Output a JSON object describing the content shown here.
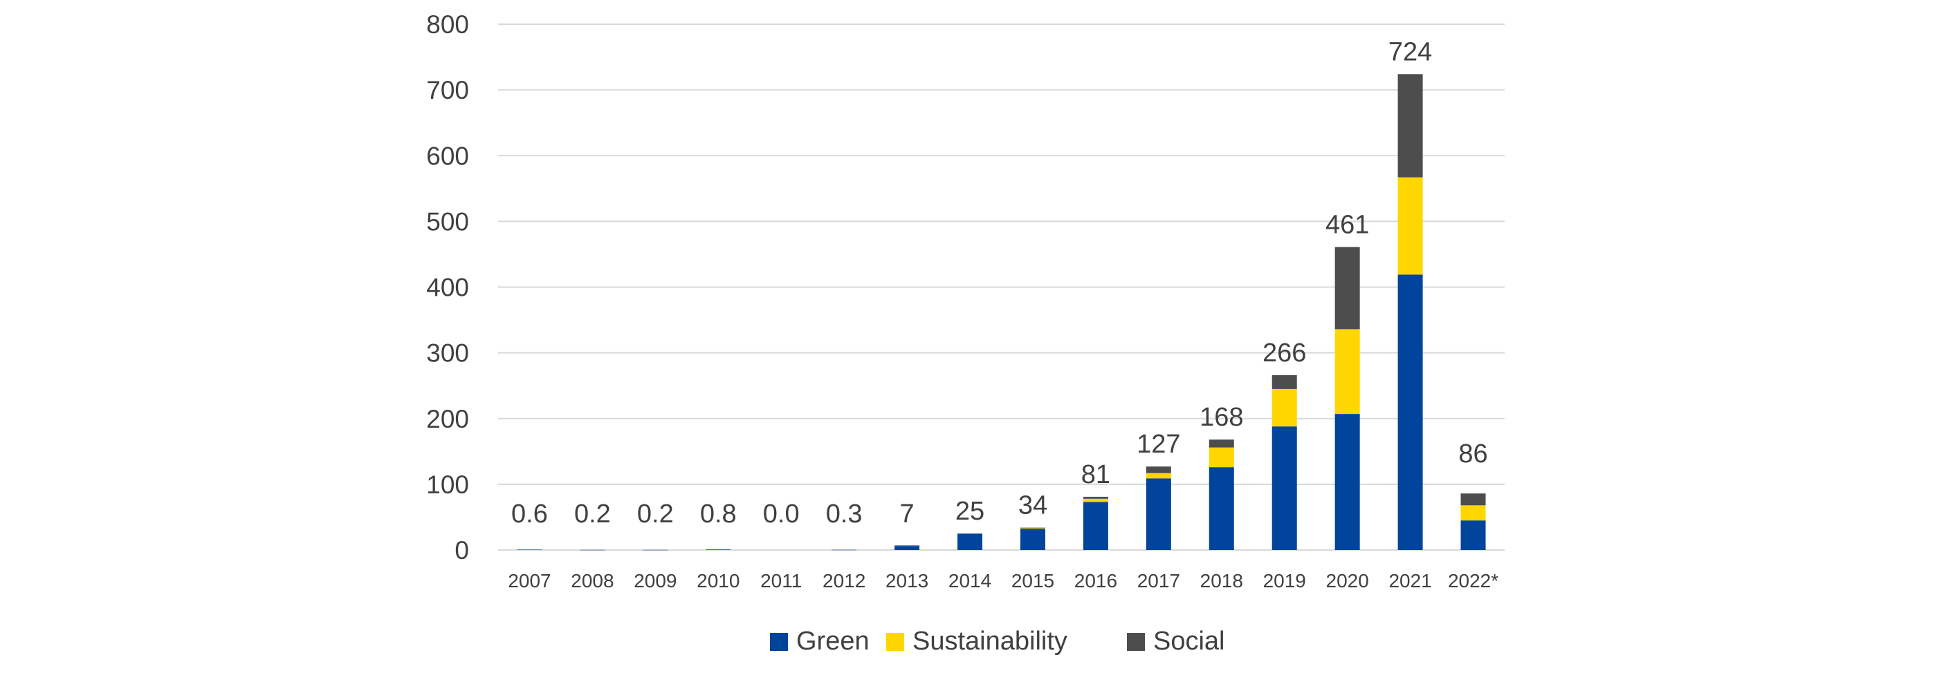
{
  "chart_data": {
    "type": "bar",
    "stacked": true,
    "categories": [
      "2007",
      "2008",
      "2009",
      "2010",
      "2011",
      "2012",
      "2013",
      "2014",
      "2015",
      "2016",
      "2017",
      "2018",
      "2019",
      "2020",
      "2021",
      "2022*"
    ],
    "series": [
      {
        "name": "Green",
        "color": "#00449b",
        "values": [
          0.6,
          0.2,
          0.2,
          0.8,
          0.0,
          0.3,
          6,
          25,
          32,
          73,
          109,
          126,
          188,
          207,
          419,
          45
        ]
      },
      {
        "name": "Sustainability",
        "color": "#ffd600",
        "values": [
          0,
          0,
          0,
          0,
          0,
          0,
          0,
          0,
          1,
          5,
          8,
          30,
          57,
          129,
          148,
          23
        ]
      },
      {
        "name": "Social",
        "color": "#4d4d4d",
        "values": [
          0,
          0,
          0,
          0,
          0,
          0,
          1,
          0,
          1,
          3,
          10,
          12,
          21,
          125,
          157,
          18
        ]
      }
    ],
    "totals": [
      "0.6",
      "0.2",
      "0.2",
      "0.8",
      "0.0",
      "0.3",
      "7",
      "25",
      "34",
      "81",
      "127",
      "168",
      "266",
      "461",
      "724",
      "86"
    ],
    "yticks": [
      "0",
      "100",
      "200",
      "300",
      "400",
      "500",
      "600",
      "700",
      "800"
    ],
    "ylim": [
      0,
      800
    ],
    "grid": true,
    "legend_position": "bottom",
    "title": "",
    "xlabel": "",
    "ylabel": ""
  }
}
